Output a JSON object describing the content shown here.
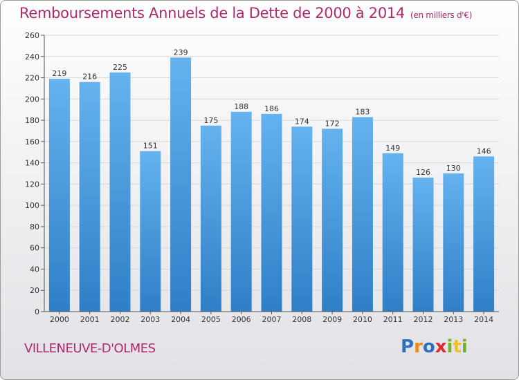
{
  "header": {
    "title": "Remboursements Annuels de la Dette de 2000 à 2014",
    "subtitle": "(en milliers d'€)"
  },
  "footer": {
    "commune": "VILLENEUVE-D'OLMES"
  },
  "logo": {
    "letters": [
      "P",
      "r",
      "o",
      "x",
      "i",
      "t",
      "i"
    ],
    "colors": [
      "#2f6fc0",
      "#f08a1a",
      "#2f6fc0",
      "#e02c2c",
      "#6fb32b",
      "#f0c21a",
      "#6fb32b"
    ]
  },
  "colors": {
    "bar_light": "#64b2ee",
    "bar_dark": "#2f7fc8",
    "title": "#b0286e",
    "grid": "#d8d8d8",
    "axis": "#555555"
  },
  "chart_data": {
    "type": "bar",
    "categories": [
      "2000",
      "2001",
      "2002",
      "2003",
      "2004",
      "2005",
      "2006",
      "2007",
      "2008",
      "2009",
      "2010",
      "2011",
      "2012",
      "2013",
      "2014"
    ],
    "values": [
      219,
      216,
      225,
      151,
      239,
      175,
      188,
      186,
      174,
      172,
      183,
      149,
      126,
      130,
      146
    ],
    "ylim": [
      0,
      260
    ],
    "yticks": [
      0,
      20,
      40,
      60,
      80,
      100,
      120,
      140,
      160,
      180,
      200,
      220,
      240,
      260
    ],
    "grid": true,
    "show_value_labels": true
  }
}
